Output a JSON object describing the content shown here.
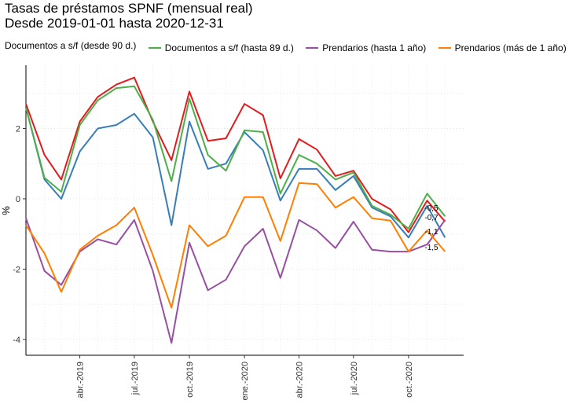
{
  "header": {
    "title_line1": "Tasas de préstamos SPNF (mensual real)",
    "title_line2": "Desde 2019-01-01 hasta 2020-12-31"
  },
  "legend": [
    {
      "label": "Documentos a s/f (desde 90 d.)",
      "color": "#377eb8"
    },
    {
      "label": "Documentos a s/f (hasta 89 d.)",
      "color": "#4daf4a"
    },
    {
      "label": "Prendarios (hasta 1 año)",
      "color": "#984ea3"
    },
    {
      "label": "Prendarios (más de 1 año)",
      "color": "#ff7f00"
    }
  ],
  "chart_data": {
    "type": "line",
    "ylabel": "%",
    "ylim": [
      -4.45,
      3.8
    ],
    "xlim": [
      "2019-01-01",
      "2020-12-31"
    ],
    "x": [
      "2019-01-01",
      "2019-02-01",
      "2019-03-01",
      "2019-04-01",
      "2019-05-01",
      "2019-06-01",
      "2019-07-01",
      "2019-08-01",
      "2019-09-01",
      "2019-10-01",
      "2019-11-01",
      "2019-12-01",
      "2020-01-01",
      "2020-02-01",
      "2020-03-01",
      "2020-04-01",
      "2020-05-01",
      "2020-06-01",
      "2020-07-01",
      "2020-08-01",
      "2020-09-01",
      "2020-10-01",
      "2020-11-01",
      "2020-12-01"
    ],
    "y_ticks": [
      -4,
      -2,
      0,
      2
    ],
    "x_ticks": [
      {
        "date": "2019-04-01",
        "label": "abr.-2019"
      },
      {
        "date": "2019-07-01",
        "label": "jul.-2019"
      },
      {
        "date": "2019-10-01",
        "label": "oct.-2019"
      },
      {
        "date": "2020-01-01",
        "label": "ene.-2020"
      },
      {
        "date": "2020-04-01",
        "label": "abr.-2020"
      },
      {
        "date": "2020-07-01",
        "label": "jul.-2020"
      },
      {
        "date": "2020-10-01",
        "label": "oct.-2020"
      }
    ],
    "series": [
      {
        "color": "#e41a1c",
        "values": [
          2.7,
          1.25,
          0.55,
          2.2,
          2.9,
          3.25,
          3.45,
          2.2,
          1.1,
          3.05,
          1.65,
          1.72,
          2.7,
          2.38,
          0.58,
          1.7,
          1.4,
          0.65,
          0.8,
          0,
          -0.3,
          -0.95,
          -0.05,
          -0.65
        ]
      },
      {
        "name": "Documentos a s/f (desde 90 d.)",
        "color": "#377eb8",
        "values": [
          2.6,
          0.55,
          0.0,
          1.35,
          2.0,
          2.1,
          2.42,
          1.75,
          -0.75,
          2.2,
          0.85,
          1.0,
          1.9,
          1.38,
          -0.05,
          0.85,
          0.85,
          0.25,
          0.65,
          -0.25,
          -0.5,
          -1.1,
          -0.2,
          -1.1
        ]
      },
      {
        "name": "Documentos a s/f (hasta 89 d.)",
        "color": "#4daf4a",
        "values": [
          2.6,
          0.6,
          0.2,
          2.1,
          2.8,
          3.15,
          3.2,
          2.25,
          0.5,
          2.85,
          1.25,
          0.8,
          1.95,
          1.9,
          0.15,
          1.25,
          1.0,
          0.55,
          0.75,
          -0.2,
          -0.45,
          -0.85,
          0.15,
          -0.5
        ]
      },
      {
        "name": "Prendarios (hasta 1 año)",
        "color": "#984ea3",
        "values": [
          -0.55,
          -2.05,
          -2.45,
          -1.5,
          -1.15,
          -1.3,
          -0.6,
          -2.05,
          -4.1,
          -1.25,
          -2.6,
          -2.3,
          -1.35,
          -0.85,
          -2.25,
          -0.6,
          -0.9,
          -1.4,
          -0.65,
          -1.45,
          -1.5,
          -1.5,
          -1.3,
          -0.6
        ]
      },
      {
        "name": "Prendarios (más de 1 año)",
        "color": "#ff7f00",
        "values": [
          -0.75,
          -1.55,
          -2.65,
          -1.45,
          -1.05,
          -0.75,
          -0.25,
          -1.6,
          -3.1,
          -0.75,
          -1.35,
          -1.05,
          0.05,
          0.05,
          -1.2,
          0.45,
          0.42,
          -0.25,
          0.05,
          -0.55,
          -0.62,
          -1.5,
          -0.9,
          -1.5
        ]
      }
    ],
    "end_labels": [
      "-0,5",
      "-0,7",
      "-1,1",
      "-1,5"
    ],
    "grid": "minor dotted"
  }
}
